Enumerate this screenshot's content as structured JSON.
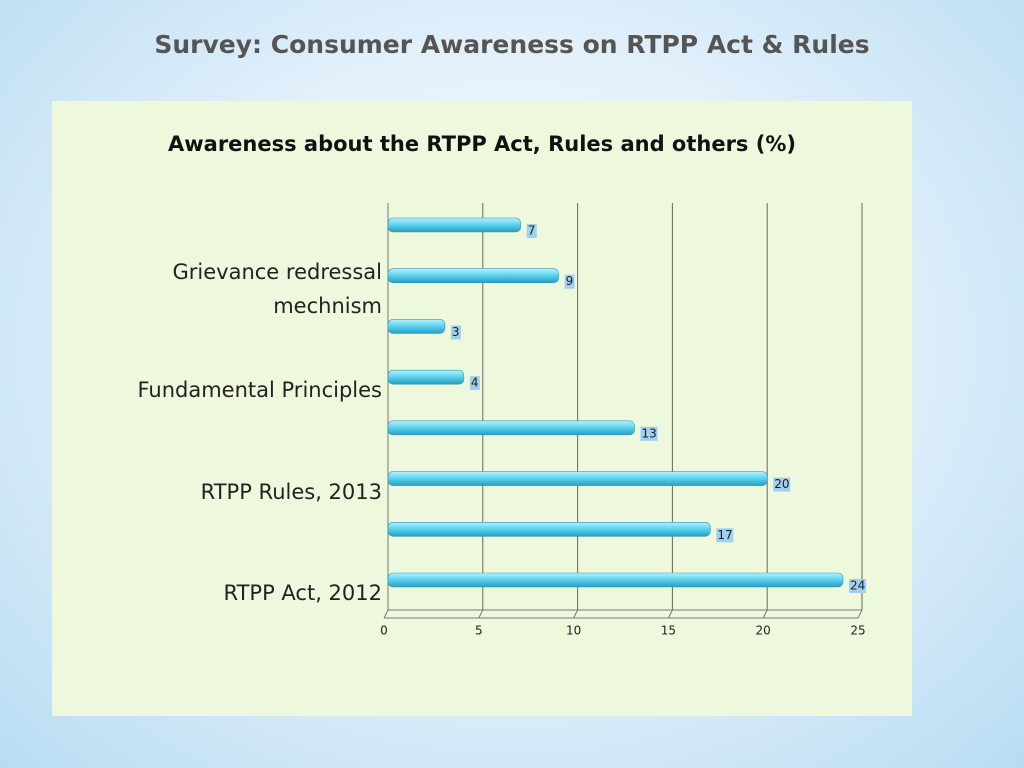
{
  "slide_title": "Survey: Consumer Awareness on RTPP Act & Rules",
  "chart_data": {
    "type": "bar",
    "orientation": "horizontal",
    "title": "Awareness about the RTPP Act, Rules and others (%)",
    "categories": [
      "RTPP Act, 2012",
      null,
      "RTPP Rules, 2013",
      null,
      "Fundamental Principles",
      null,
      "Grievance redressal mechnism",
      null
    ],
    "values": [
      24,
      17,
      20,
      13,
      4,
      3,
      9,
      7
    ],
    "color": "#5fd6f0",
    "xlim": [
      0,
      25
    ],
    "xticks": [
      0,
      5,
      10,
      15,
      20,
      25
    ],
    "grid": true
  }
}
